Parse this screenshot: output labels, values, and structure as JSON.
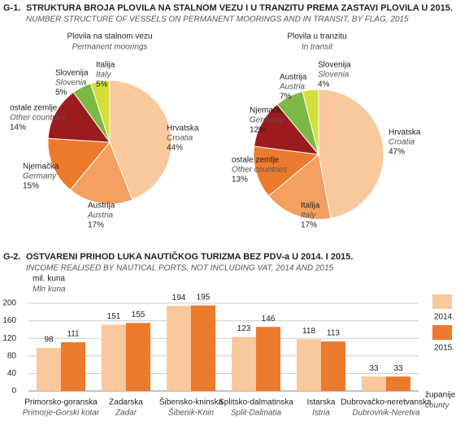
{
  "figures": [
    {
      "label": "G-1.",
      "title": "STRUKTURA BROJA PLOVILA NA STALNOM VEZU I U TRANZITU PREMA ZASTAVI PLOVILA U 2015.",
      "subtitle": "NUMBER STRUCTURE OF VESSELS ON PERMANENT MOORINGS AND IN TRANSIT, BY FLAG, 2015"
    },
    {
      "label": "G-2.",
      "title": "OSTVARENI PRIHOD LUKA NAUTIČKOG TURIZMA BEZ PDV-a U 2014. I 2015.",
      "subtitle": "INCOME REALISED BY NAUTICAL PORTS, NOT INCLUDING VAT, 2014 AND 2015"
    }
  ],
  "chart_data": [
    {
      "type": "pie",
      "title": "Plovila na stalnom vezu",
      "subtitle": "Permanent moorings",
      "categories": [
        "Hrvatska",
        "Austrija",
        "Njemačka",
        "ostale zemlje",
        "Slovenija",
        "Italija"
      ],
      "categories_en": [
        "Croatia",
        "Austria",
        "Germany",
        "Other countries",
        "Slovenia",
        "Italy"
      ],
      "values": [
        44,
        17,
        15,
        14,
        5,
        5
      ],
      "value_labels": [
        "44%",
        "17%",
        "15%",
        "14%",
        "5%",
        "5%"
      ],
      "colors": [
        "#f9c89d",
        "#f4a062",
        "#ec7a2c",
        "#9b1b1e",
        "#7cb843",
        "#d3df3a"
      ]
    },
    {
      "type": "pie",
      "title": "Plovila u tranzitu",
      "subtitle": "In transit",
      "categories": [
        "Hrvatska",
        "Italija",
        "ostale zemlje",
        "Njemačka",
        "Austrija",
        "Slovenija"
      ],
      "categories_en": [
        "Croatia",
        "Italy",
        "Other countries",
        "Germany",
        "Austria",
        "Slovenia"
      ],
      "values": [
        47,
        17,
        13,
        12,
        7,
        4
      ],
      "value_labels": [
        "47%",
        "17%",
        "13%",
        "12%",
        "7%",
        "4%"
      ],
      "colors": [
        "#f9c89d",
        "#f4a062",
        "#ec7a2c",
        "#9b1b1e",
        "#7cb843",
        "#d3df3a"
      ]
    },
    {
      "type": "bar",
      "ylabel": "mil. kuna",
      "ylabel_en": "Mln kuna",
      "xlabel": "županije",
      "xlabel_en": "county",
      "categories": [
        "Primorsko-goranska",
        "Zadarska",
        "Šibensko-kninska",
        "Splitsko-dalmatinska",
        "Istarska",
        "Dubrovačko-neretvanska"
      ],
      "categories_en": [
        "Primorje-Gorski kotar",
        "Zadar",
        "Šibenik-Knin",
        "Split-Dalmatia",
        "Istria",
        "Dubrovnik-Neretva"
      ],
      "series": [
        {
          "name": "2014.",
          "color": "#f9c89d",
          "values": [
            98,
            151,
            194,
            123,
            118,
            33
          ]
        },
        {
          "name": "2015.",
          "color": "#ec7a2c",
          "values": [
            111,
            155,
            195,
            146,
            113,
            33
          ]
        }
      ],
      "ylim": [
        0,
        200
      ],
      "yticks": [
        0,
        40,
        80,
        120,
        160,
        200
      ],
      "grid": true
    }
  ]
}
